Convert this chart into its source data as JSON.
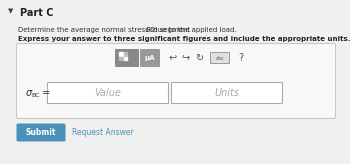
{
  "bg_color": "#f0f0f0",
  "white": "#ffffff",
  "part_label": "Part C",
  "line1": "Determine the average normal stress in segment ",
  "line1_italic": "BC",
  "line1_end": " due to the applied load.",
  "line2": "Express your answer to three significant figures and include the appropriate units.",
  "sigma_label": "σ",
  "sigma_sub": "BC",
  "equals": " =",
  "value_placeholder": "Value",
  "units_placeholder": "Units",
  "submit_label": "Submit",
  "request_label": "Request Answer",
  "submit_bg": "#4a90b8",
  "submit_text": "#ffffff",
  "box_border": "#cccccc",
  "input_border": "#aaaaaa",
  "mu_label": "μA",
  "question_mark": "?"
}
